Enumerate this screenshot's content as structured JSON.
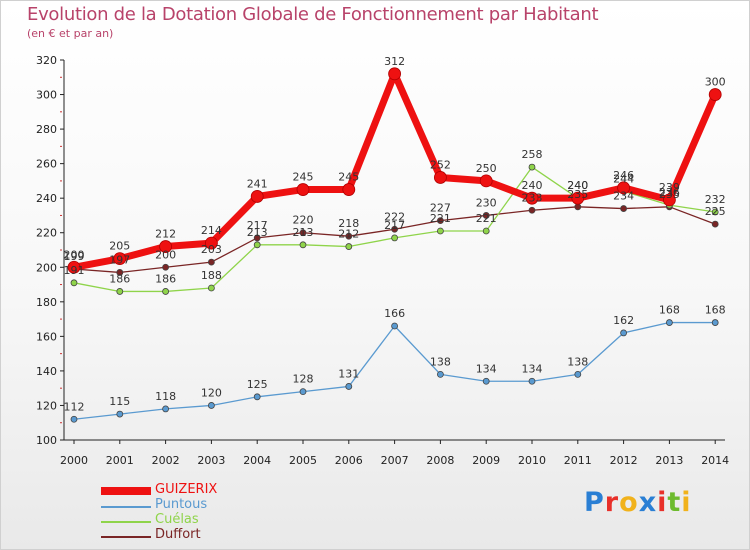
{
  "header": {
    "title": "Evolution de la Dotation Globale de Fonctionnement par Habitant",
    "subtitle": "(en € et par an)"
  },
  "logo": {
    "letters": [
      "P",
      "r",
      "o",
      "x",
      "i",
      "t",
      "i"
    ],
    "colors": [
      "#2a7fd4",
      "#e8302a",
      "#f1b21b",
      "#2a7fd4",
      "#e8302a",
      "#6dbb2e",
      "#f1b21b"
    ]
  },
  "chart_data": {
    "type": "line",
    "title": "Evolution de la Dotation Globale de Fonctionnement par Habitant",
    "subtitle": "(en € et par an)",
    "xlabel": "",
    "ylabel": "",
    "ylim": [
      100,
      320
    ],
    "yticks": [
      100,
      120,
      140,
      160,
      180,
      200,
      220,
      240,
      260,
      280,
      300,
      320
    ],
    "categories": [
      "2000",
      "2001",
      "2002",
      "2003",
      "2004",
      "2005",
      "2006",
      "2007",
      "2008",
      "2009",
      "2010",
      "2011",
      "2012",
      "2013",
      "2014"
    ],
    "grid": false,
    "legend_position": "bottom-left",
    "series": [
      {
        "name": "Duffort",
        "color": "#7a2525",
        "values": [
          199,
          197,
          200,
          203,
          217,
          220,
          218,
          222,
          227,
          230,
          233,
          235,
          234,
          235,
          225
        ]
      },
      {
        "name": "Cuélas",
        "color": "#8fd44a",
        "values": [
          191,
          186,
          186,
          188,
          213,
          213,
          212,
          217,
          221,
          221,
          258,
          240,
          244,
          236,
          232
        ]
      },
      {
        "name": "Puntous",
        "color": "#5a9ad0",
        "values": [
          112,
          115,
          118,
          120,
          125,
          128,
          131,
          166,
          138,
          134,
          134,
          138,
          162,
          168,
          168
        ]
      },
      {
        "name": "GUIZERIX",
        "color": "#ee1111",
        "values": [
          200,
          205,
          212,
          214,
          241,
          245,
          245,
          312,
          252,
          250,
          240,
          240,
          246,
          239,
          300
        ]
      }
    ],
    "legend": [
      "GUIZERIX",
      "Puntous",
      "Cuélas",
      "Duffort"
    ]
  }
}
